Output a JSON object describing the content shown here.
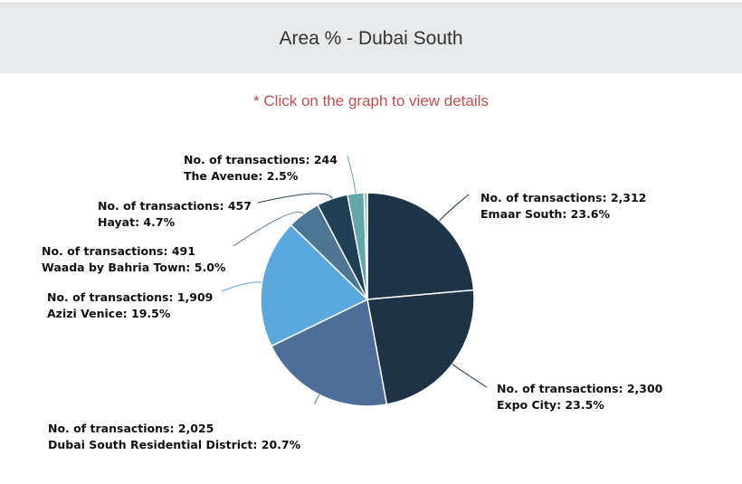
{
  "header": {
    "title": "Area % - Dubai South"
  },
  "hint": "* Click on the graph to view details",
  "chart_data": {
    "type": "pie",
    "title": "Area % - Dubai South",
    "series": [
      {
        "name": "Emaar South",
        "transactions": "2,312",
        "percent": 23.6,
        "color": "#1e3448"
      },
      {
        "name": "Expo City",
        "transactions": "2,300",
        "percent": 23.5,
        "color": "#1f3346"
      },
      {
        "name": "Dubai South Residential District",
        "transactions": "2,025",
        "percent": 20.7,
        "color": "#4e6d99"
      },
      {
        "name": "Azizi Venice",
        "transactions": "1,909",
        "percent": 19.5,
        "color": "#5aa8de"
      },
      {
        "name": "Waada by Bahria Town",
        "transactions": "491",
        "percent": 5.0,
        "color": "#4d7594"
      },
      {
        "name": "Hayat",
        "transactions": "457",
        "percent": 4.7,
        "color": "#1f3f55"
      },
      {
        "name": "The Avenue",
        "transactions": "244",
        "percent": 2.5,
        "color": "#62a5ab"
      },
      {
        "name": "",
        "transactions": "",
        "percent": 0.5,
        "color": "#8fbf9c"
      }
    ],
    "label_prefix": "No. of transactions: "
  }
}
